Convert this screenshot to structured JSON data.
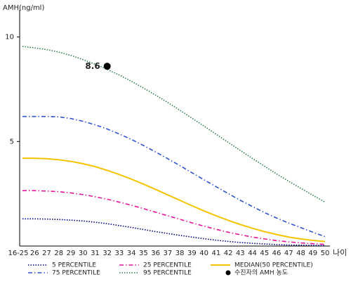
{
  "chart_data": {
    "type": "line",
    "y_label": "AMH(ng/ml)",
    "x_label": "나이",
    "categories": [
      "16-25",
      "26",
      "27",
      "28",
      "29",
      "30",
      "31",
      "32",
      "33",
      "34",
      "35",
      "36",
      "37",
      "38",
      "39",
      "40",
      "41",
      "42",
      "43",
      "44",
      "45",
      "46",
      "47",
      "48",
      "49",
      "50"
    ],
    "ylim": [
      0,
      11.3
    ],
    "yticks": [
      5,
      10
    ],
    "series": [
      {
        "name": "5 PERCENTILE",
        "color": "#000080",
        "style": "dotted",
        "values": [
          1.3,
          1.3,
          1.29,
          1.27,
          1.24,
          1.2,
          1.14,
          1.07,
          0.98,
          0.89,
          0.79,
          0.69,
          0.6,
          0.51,
          0.43,
          0.35,
          0.28,
          0.22,
          0.17,
          0.13,
          0.1,
          0.07,
          0.05,
          0.04,
          0.03,
          0.02
        ]
      },
      {
        "name": "25 PERCENTILE",
        "color": "#e0189a",
        "style": "dashdot",
        "values": [
          2.65,
          2.65,
          2.63,
          2.6,
          2.54,
          2.46,
          2.36,
          2.24,
          2.1,
          1.95,
          1.79,
          1.62,
          1.45,
          1.28,
          1.11,
          0.95,
          0.8,
          0.66,
          0.54,
          0.43,
          0.34,
          0.26,
          0.2,
          0.15,
          0.11,
          0.08
        ]
      },
      {
        "name": "MEDIAN(50 PERCENTILE)",
        "color": "#f5c400",
        "style": "solid",
        "values": [
          4.2,
          4.2,
          4.18,
          4.13,
          4.05,
          3.94,
          3.8,
          3.62,
          3.42,
          3.2,
          2.96,
          2.71,
          2.45,
          2.19,
          1.93,
          1.68,
          1.45,
          1.23,
          1.03,
          0.85,
          0.69,
          0.55,
          0.43,
          0.34,
          0.27,
          0.22
        ]
      },
      {
        "name": "75 PERCENTILE",
        "color": "#3355cc",
        "style": "dashdot",
        "values": [
          6.2,
          6.2,
          6.2,
          6.18,
          6.1,
          5.97,
          5.8,
          5.6,
          5.36,
          5.1,
          4.81,
          4.5,
          4.18,
          3.85,
          3.51,
          3.17,
          2.84,
          2.51,
          2.19,
          1.89,
          1.6,
          1.34,
          1.1,
          0.88,
          0.66,
          0.45
        ]
      },
      {
        "name": "95 PERCENTILE",
        "color": "#2e7d4f",
        "style": "dotted",
        "values": [
          9.55,
          9.48,
          9.4,
          9.28,
          9.12,
          8.92,
          8.7,
          8.45,
          8.18,
          7.88,
          7.56,
          7.22,
          6.87,
          6.5,
          6.12,
          5.74,
          5.35,
          4.96,
          4.57,
          4.19,
          3.82,
          3.45,
          3.1,
          2.76,
          2.43,
          2.1
        ]
      },
      {
        "name": "수진자의 AMH 농도",
        "color": "#000000",
        "style": "point",
        "values": [
          null,
          null,
          null,
          null,
          null,
          null,
          null,
          8.6,
          null,
          null,
          null,
          null,
          null,
          null,
          null,
          null,
          null,
          null,
          null,
          null,
          null,
          null,
          null,
          null,
          null,
          null
        ]
      }
    ]
  }
}
